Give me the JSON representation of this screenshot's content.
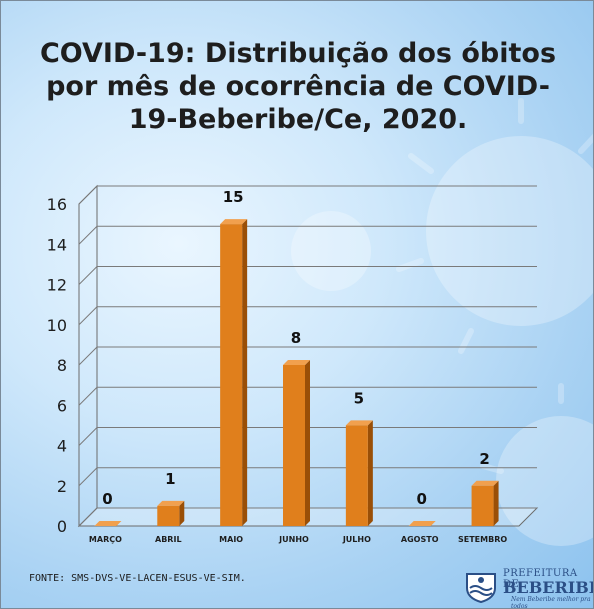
{
  "chart_data": {
    "type": "bar",
    "title": "COVID-19: Distribuição dos óbitos por mês de ocorrência de COVID-19-Beberibe/Ce, 2020.",
    "categories": [
      "MARÇO",
      "ABRIL",
      "MAIO",
      "JUNHO",
      "JULHO",
      "AGOSTO",
      "SETEMBRO"
    ],
    "values": [
      0,
      1,
      15,
      8,
      5,
      0,
      2
    ],
    "ylim": [
      0,
      16
    ],
    "yticks": [
      0,
      2,
      4,
      6,
      8,
      10,
      12,
      14,
      16
    ],
    "grid": true,
    "bar_color": "#e07f1c",
    "bar_side_color": "#9a4f07",
    "bar_top_color": "#f1a04e"
  },
  "source": "FONTE: SMS-DVS-VE-LACEN-ESUS-VE-SIM.",
  "logo": {
    "line1": "PREFEITURA DE",
    "line2": "BEBERIBE",
    "line3": "Nem Beberibe melhor pra todos"
  }
}
